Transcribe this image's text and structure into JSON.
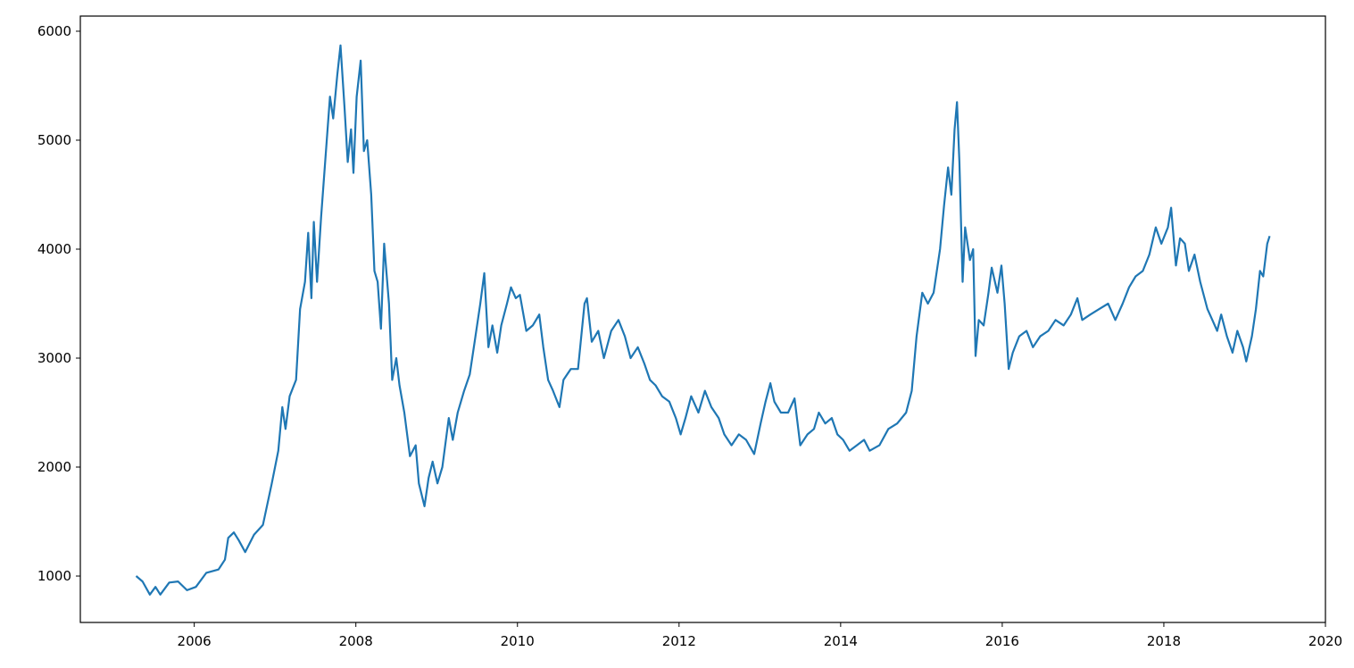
{
  "chart_data": {
    "type": "line",
    "color": "#1f77b4",
    "x": [
      2005.28,
      2005.36,
      2005.45,
      2005.52,
      2005.58,
      2005.69,
      2005.8,
      2005.91,
      2006.02,
      2006.15,
      2006.3,
      2006.38,
      2006.42,
      2006.49,
      2006.55,
      2006.63,
      2006.74,
      2006.85,
      2006.96,
      2007.04,
      2007.09,
      2007.13,
      2007.18,
      2007.26,
      2007.31,
      2007.37,
      2007.41,
      2007.45,
      2007.48,
      2007.52,
      2007.57,
      2007.62,
      2007.68,
      2007.72,
      2007.77,
      2007.81,
      2007.86,
      2007.9,
      2007.94,
      2007.97,
      2008.01,
      2008.06,
      2008.1,
      2008.14,
      2008.19,
      2008.23,
      2008.27,
      2008.31,
      2008.35,
      2008.41,
      2008.45,
      2008.5,
      2008.54,
      2008.6,
      2008.67,
      2008.74,
      2008.78,
      2008.85,
      2008.9,
      2008.95,
      2009.01,
      2009.07,
      2009.15,
      2009.2,
      2009.26,
      2009.34,
      2009.41,
      2009.48,
      2009.54,
      2009.59,
      2009.64,
      2009.69,
      2009.75,
      2009.8,
      2009.87,
      2009.92,
      2009.98,
      2010.03,
      2010.11,
      2010.19,
      2010.27,
      2010.32,
      2010.38,
      2010.44,
      2010.52,
      2010.57,
      2010.66,
      2010.75,
      2010.83,
      2010.86,
      2010.92,
      2011.0,
      2011.07,
      2011.16,
      2011.25,
      2011.33,
      2011.4,
      2011.49,
      2011.57,
      2011.64,
      2011.71,
      2011.79,
      2011.88,
      2011.96,
      2012.02,
      2012.08,
      2012.15,
      2012.24,
      2012.32,
      2012.4,
      2012.49,
      2012.56,
      2012.65,
      2012.74,
      2012.83,
      2012.93,
      2013.01,
      2013.07,
      2013.13,
      2013.18,
      2013.26,
      2013.35,
      2013.43,
      2013.5,
      2013.59,
      2013.67,
      2013.73,
      2013.81,
      2013.89,
      2013.96,
      2014.03,
      2014.11,
      2014.2,
      2014.29,
      2014.36,
      2014.48,
      2014.59,
      2014.7,
      2014.81,
      2014.88,
      2014.94,
      2015.01,
      2015.08,
      2015.15,
      2015.23,
      2015.28,
      2015.33,
      2015.37,
      2015.41,
      2015.44,
      2015.47,
      2015.51,
      2015.54,
      2015.6,
      2015.64,
      2015.67,
      2015.71,
      2015.77,
      2015.83,
      2015.87,
      2015.94,
      2015.99,
      2016.03,
      2016.08,
      2016.13,
      2016.21,
      2016.3,
      2016.38,
      2016.47,
      2016.57,
      2016.66,
      2016.76,
      2016.85,
      2016.93,
      2016.99,
      2017.09,
      2017.2,
      2017.31,
      2017.4,
      2017.49,
      2017.57,
      2017.65,
      2017.74,
      2017.82,
      2017.9,
      2017.97,
      2018.05,
      2018.09,
      2018.15,
      2018.2,
      2018.26,
      2018.31,
      2018.38,
      2018.45,
      2018.54,
      2018.6,
      2018.66,
      2018.71,
      2018.78,
      2018.85,
      2018.91,
      2018.98,
      2019.02,
      2019.09,
      2019.14,
      2019.19,
      2019.23,
      2019.28,
      2019.31
    ],
    "values": [
      1000,
      950,
      830,
      900,
      830,
      940,
      950,
      870,
      900,
      1030,
      1060,
      1150,
      1350,
      1400,
      1330,
      1220,
      1380,
      1470,
      1850,
      2150,
      2550,
      2350,
      2650,
      2800,
      3450,
      3700,
      4150,
      3550,
      4250,
      3700,
      4300,
      4800,
      5400,
      5200,
      5600,
      5870,
      5300,
      4800,
      5100,
      4700,
      5400,
      5730,
      4900,
      5000,
      4500,
      3800,
      3700,
      3270,
      4050,
      3500,
      2800,
      3000,
      2750,
      2500,
      2100,
      2200,
      1850,
      1640,
      1900,
      2050,
      1850,
      2000,
      2450,
      2250,
      2500,
      2700,
      2850,
      3200,
      3500,
      3780,
      3100,
      3300,
      3050,
      3300,
      3500,
      3650,
      3550,
      3580,
      3250,
      3300,
      3400,
      3100,
      2800,
      2700,
      2550,
      2800,
      2900,
      2900,
      3500,
      3550,
      3150,
      3250,
      3000,
      3250,
      3350,
      3200,
      3000,
      3100,
      2950,
      2800,
      2750,
      2650,
      2600,
      2450,
      2300,
      2450,
      2650,
      2500,
      2700,
      2550,
      2450,
      2300,
      2200,
      2300,
      2250,
      2120,
      2400,
      2600,
      2770,
      2600,
      2500,
      2500,
      2630,
      2200,
      2300,
      2350,
      2500,
      2400,
      2450,
      2300,
      2250,
      2150,
      2200,
      2250,
      2150,
      2200,
      2350,
      2400,
      2500,
      2700,
      3200,
      3600,
      3500,
      3600,
      4000,
      4400,
      4750,
      4500,
      5100,
      5350,
      4800,
      3700,
      4200,
      3900,
      4000,
      3020,
      3350,
      3300,
      3600,
      3830,
      3600,
      3850,
      3500,
      2900,
      3050,
      3200,
      3250,
      3100,
      3200,
      3250,
      3350,
      3300,
      3400,
      3550,
      3350,
      3400,
      3450,
      3500,
      3350,
      3500,
      3650,
      3750,
      3800,
      3950,
      4200,
      4050,
      4200,
      4380,
      3850,
      4100,
      4050,
      3800,
      3950,
      3700,
      3450,
      3350,
      3250,
      3400,
      3200,
      3050,
      3250,
      3100,
      2970,
      3200,
      3450,
      3800,
      3750,
      4050,
      4120
    ],
    "xlim": [
      2004.59,
      2020
    ],
    "xticks": [
      2006,
      2008,
      2010,
      2012,
      2014,
      2016,
      2018,
      2020
    ],
    "ylim": [
      574,
      6139
    ],
    "yticks": [
      1000,
      2000,
      3000,
      4000,
      5000,
      6000
    ]
  }
}
